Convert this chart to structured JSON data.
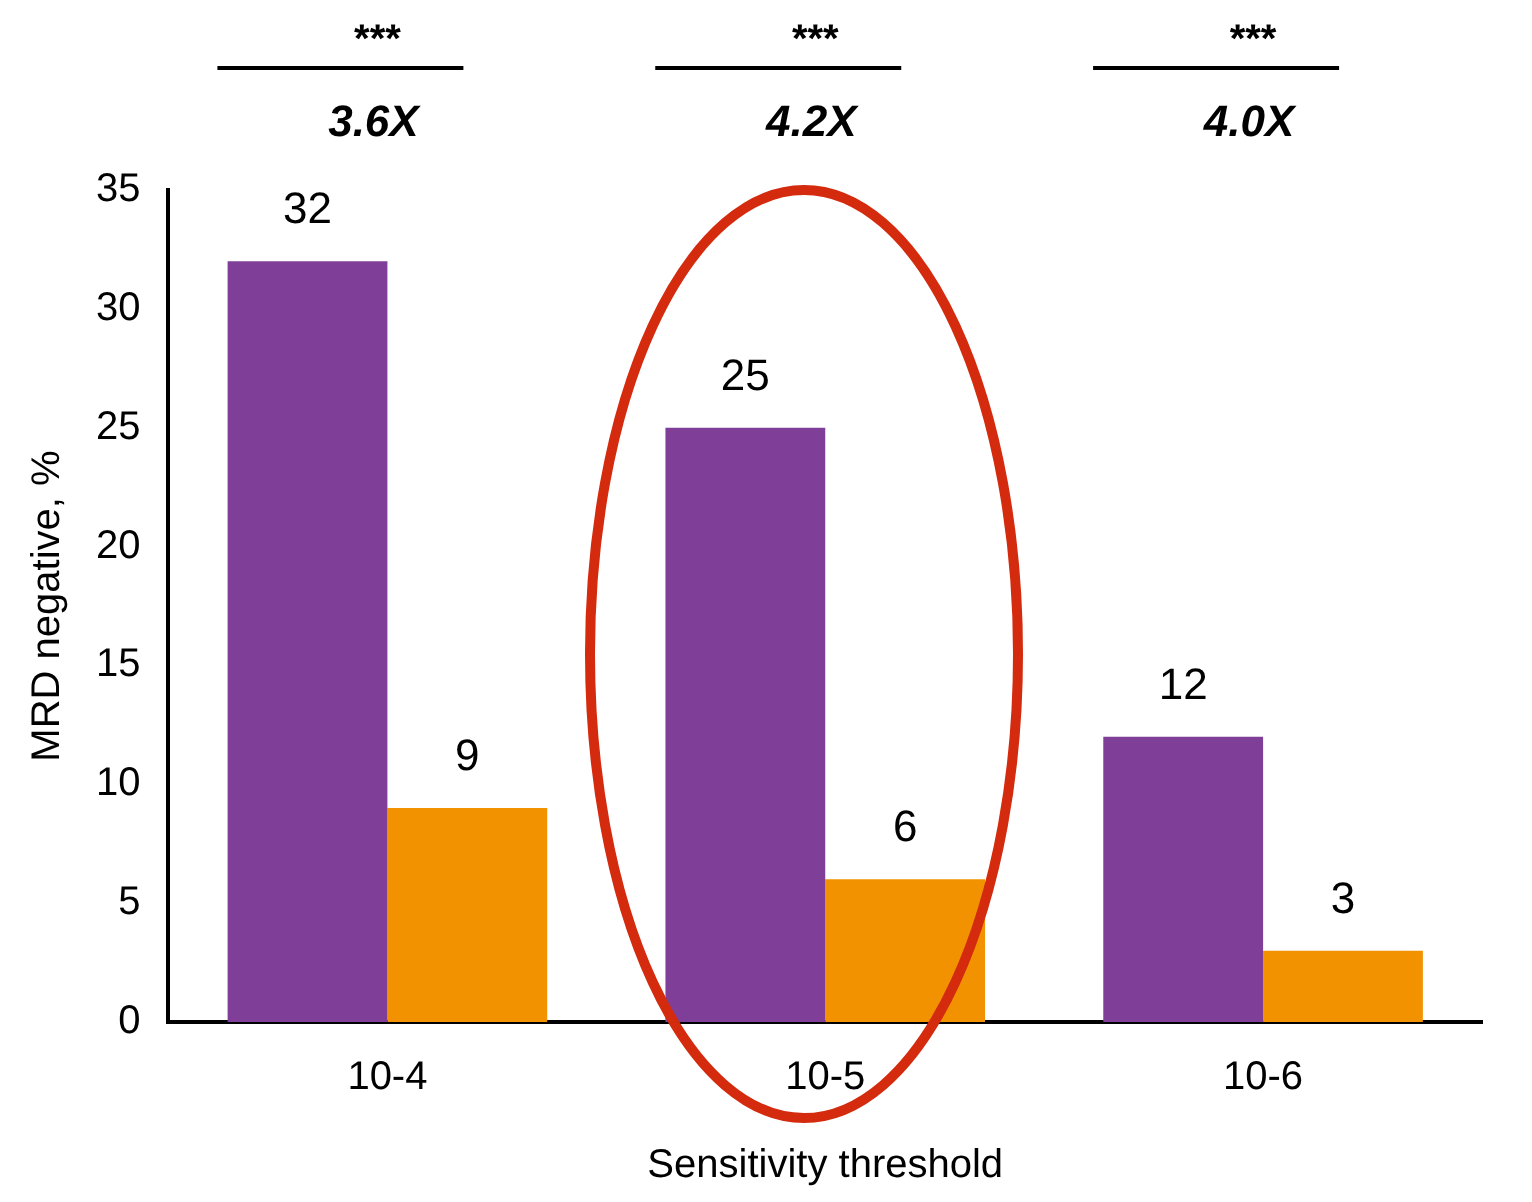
{
  "chart_data": {
    "type": "bar",
    "xlabel": "Sensitivity threshold",
    "ylabel": "MRD negative, %",
    "categories": [
      "10-4",
      "10-5",
      "10-6"
    ],
    "series": [
      {
        "color": "#7f3f98",
        "values": [
          32,
          25,
          12
        ]
      },
      {
        "color": "#f39200",
        "values": [
          9,
          6,
          3
        ]
      }
    ],
    "ylim": [
      0,
      35
    ],
    "yticks": [
      0,
      5,
      10,
      15,
      20,
      25,
      30,
      35
    ],
    "grid": false,
    "legend": false,
    "data_labels": true,
    "annotations": [
      "***",
      "3.6X",
      "***",
      "4.2X",
      "***",
      "4.0X"
    ]
  }
}
